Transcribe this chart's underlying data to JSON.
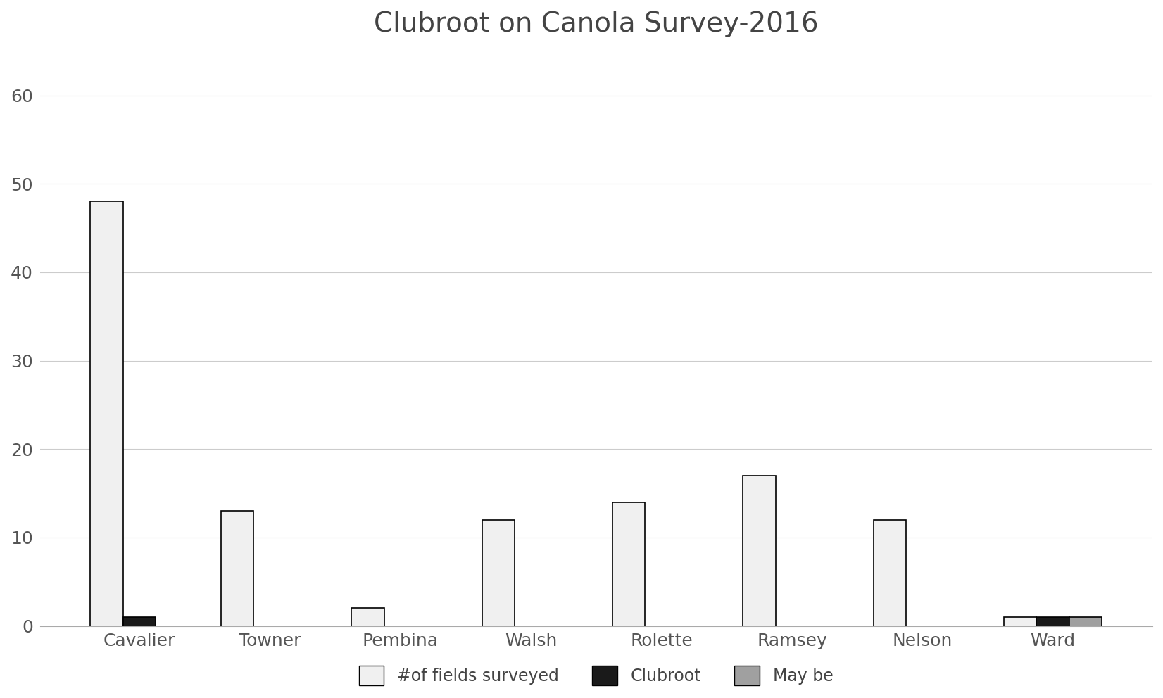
{
  "title": "Clubroot on Canola Survey-2016",
  "categories": [
    "Cavalier",
    "Towner",
    "Pembina",
    "Walsh",
    "Rolette",
    "Ramsey",
    "Nelson",
    "Ward"
  ],
  "fields_surveyed": [
    48,
    13,
    2,
    12,
    14,
    17,
    12,
    1
  ],
  "clubroot": [
    1,
    0,
    0,
    0,
    0,
    0,
    0,
    1
  ],
  "maybe": [
    0,
    0,
    0,
    0,
    0,
    0,
    0,
    1
  ],
  "bar_color_surveyed": "#f0f0f0",
  "bar_color_clubroot": "#1a1a1a",
  "bar_color_maybe": "#a0a0a0",
  "bar_edge_color": "#000000",
  "ylim": [
    0,
    65
  ],
  "yticks": [
    0,
    10,
    20,
    30,
    40,
    50,
    60
  ],
  "title_fontsize": 28,
  "tick_fontsize": 18,
  "legend_fontsize": 17,
  "bar_width": 0.25,
  "background_color": "#ffffff",
  "grid_color": "#cccccc"
}
